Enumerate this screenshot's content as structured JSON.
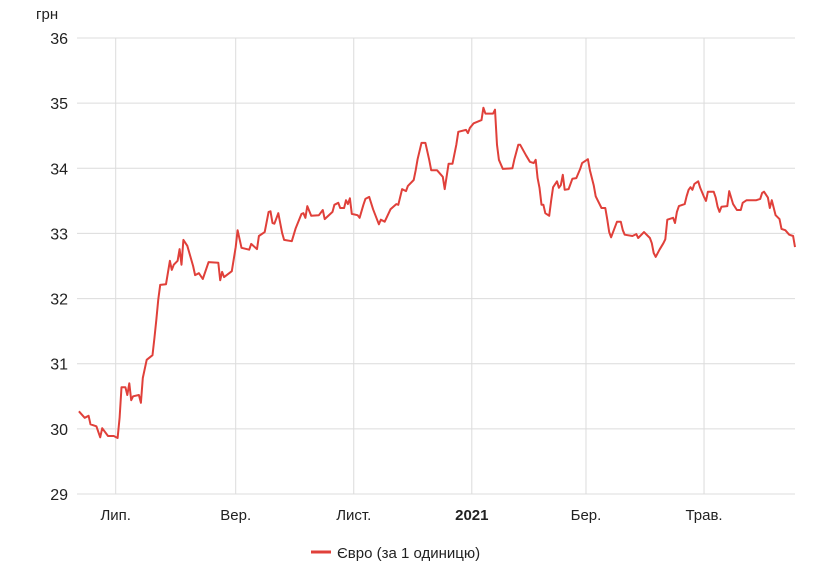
{
  "chart_data": {
    "type": "line",
    "title": "",
    "xlabel": "",
    "ylabel": "грн",
    "ylim": [
      29,
      36
    ],
    "yticks": [
      "29",
      "30",
      "31",
      "32",
      "33",
      "34",
      "35",
      "36"
    ],
    "x_unit": "days from start of range (mid-June 2020)",
    "xlim": [
      0,
      371
    ],
    "xticks": [
      {
        "day": 20,
        "label": "Лип.",
        "bold": false
      },
      {
        "day": 82,
        "label": "Вер.",
        "bold": false
      },
      {
        "day": 143,
        "label": "Лист.",
        "bold": false
      },
      {
        "day": 204,
        "label": "2021",
        "bold": true
      },
      {
        "day": 263,
        "label": "Бер.",
        "bold": false
      },
      {
        "day": 324,
        "label": "Трав.",
        "bold": false
      }
    ],
    "grid": true,
    "legend_position": "bottom",
    "series": [
      {
        "name": "Євро (за 1 одиницю)",
        "color": "#e0403a",
        "points": [
          [
            1,
            30.27
          ],
          [
            4,
            30.17
          ],
          [
            6,
            30.2
          ],
          [
            7,
            30.07
          ],
          [
            10,
            30.04
          ],
          [
            12,
            29.87
          ],
          [
            13,
            30.01
          ],
          [
            16,
            29.89
          ],
          [
            19,
            29.89
          ],
          [
            21,
            29.86
          ],
          [
            22,
            30.17
          ],
          [
            23,
            30.64
          ],
          [
            25,
            30.64
          ],
          [
            26,
            30.52
          ],
          [
            27,
            30.7
          ],
          [
            28,
            30.44
          ],
          [
            29,
            30.5
          ],
          [
            32,
            30.52
          ],
          [
            33,
            30.4
          ],
          [
            34,
            30.78
          ],
          [
            36,
            31.06
          ],
          [
            39,
            31.13
          ],
          [
            40,
            31.39
          ],
          [
            41,
            31.67
          ],
          [
            42,
            31.99
          ],
          [
            43,
            32.21
          ],
          [
            46,
            32.22
          ],
          [
            48,
            32.58
          ],
          [
            49,
            32.44
          ],
          [
            50,
            32.52
          ],
          [
            52,
            32.58
          ],
          [
            53,
            32.76
          ],
          [
            54,
            32.52
          ],
          [
            55,
            32.9
          ],
          [
            57,
            32.81
          ],
          [
            60,
            32.5
          ],
          [
            61,
            32.36
          ],
          [
            63,
            32.39
          ],
          [
            65,
            32.3
          ],
          [
            68,
            32.56
          ],
          [
            73,
            32.55
          ],
          [
            74,
            32.28
          ],
          [
            75,
            32.41
          ],
          [
            76,
            32.33
          ],
          [
            80,
            32.42
          ],
          [
            82,
            32.79
          ],
          [
            83,
            33.05
          ],
          [
            85,
            32.78
          ],
          [
            89,
            32.75
          ],
          [
            90,
            32.84
          ],
          [
            93,
            32.76
          ],
          [
            94,
            32.96
          ],
          [
            97,
            33.02
          ],
          [
            99,
            33.33
          ],
          [
            100,
            33.34
          ],
          [
            101,
            33.16
          ],
          [
            102,
            33.15
          ],
          [
            104,
            33.31
          ],
          [
            106,
            33.01
          ],
          [
            107,
            32.9
          ],
          [
            111,
            32.88
          ],
          [
            113,
            33.08
          ],
          [
            116,
            33.3
          ],
          [
            117,
            33.31
          ],
          [
            118,
            33.24
          ],
          [
            119,
            33.42
          ],
          [
            121,
            33.27
          ],
          [
            125,
            33.28
          ],
          [
            127,
            33.36
          ],
          [
            128,
            33.22
          ],
          [
            132,
            33.33
          ],
          [
            133,
            33.44
          ],
          [
            135,
            33.47
          ],
          [
            136,
            33.39
          ],
          [
            138,
            33.39
          ],
          [
            139,
            33.51
          ],
          [
            140,
            33.45
          ],
          [
            141,
            33.54
          ],
          [
            142,
            33.3
          ],
          [
            145,
            33.28
          ],
          [
            146,
            33.24
          ],
          [
            148,
            33.44
          ],
          [
            149,
            33.53
          ],
          [
            151,
            33.56
          ],
          [
            153,
            33.37
          ],
          [
            156,
            33.14
          ],
          [
            157,
            33.21
          ],
          [
            159,
            33.18
          ],
          [
            162,
            33.37
          ],
          [
            165,
            33.45
          ],
          [
            166,
            33.44
          ],
          [
            168,
            33.68
          ],
          [
            170,
            33.65
          ],
          [
            171,
            33.73
          ],
          [
            174,
            33.82
          ],
          [
            175,
            33.97
          ],
          [
            176,
            34.14
          ],
          [
            178,
            34.39
          ],
          [
            180,
            34.39
          ],
          [
            182,
            34.13
          ],
          [
            183,
            33.97
          ],
          [
            186,
            33.97
          ],
          [
            189,
            33.87
          ],
          [
            190,
            33.68
          ],
          [
            192,
            34.07
          ],
          [
            194,
            34.07
          ],
          [
            196,
            34.36
          ],
          [
            197,
            34.56
          ],
          [
            201,
            34.59
          ],
          [
            202,
            34.54
          ],
          [
            203,
            34.62
          ],
          [
            205,
            34.69
          ],
          [
            209,
            34.74
          ],
          [
            210,
            34.93
          ],
          [
            211,
            34.84
          ],
          [
            215,
            34.84
          ],
          [
            216,
            34.9
          ],
          [
            217,
            34.36
          ],
          [
            218,
            34.13
          ],
          [
            220,
            33.99
          ],
          [
            225,
            34.0
          ],
          [
            226,
            34.14
          ],
          [
            228,
            34.36
          ],
          [
            229,
            34.36
          ],
          [
            232,
            34.2
          ],
          [
            234,
            34.1
          ],
          [
            236,
            34.08
          ],
          [
            237,
            34.13
          ],
          [
            238,
            33.85
          ],
          [
            239,
            33.7
          ],
          [
            240,
            33.44
          ],
          [
            241,
            33.44
          ],
          [
            242,
            33.31
          ],
          [
            244,
            33.27
          ],
          [
            245,
            33.51
          ],
          [
            246,
            33.71
          ],
          [
            248,
            33.8
          ],
          [
            249,
            33.7
          ],
          [
            250,
            33.74
          ],
          [
            251,
            33.9
          ],
          [
            252,
            33.67
          ],
          [
            254,
            33.68
          ],
          [
            256,
            33.84
          ],
          [
            258,
            33.85
          ],
          [
            260,
            33.99
          ],
          [
            261,
            34.08
          ],
          [
            264,
            34.14
          ],
          [
            265,
            33.97
          ],
          [
            267,
            33.74
          ],
          [
            268,
            33.57
          ],
          [
            271,
            33.39
          ],
          [
            273,
            33.39
          ],
          [
            274,
            33.21
          ],
          [
            275,
            33.02
          ],
          [
            276,
            32.94
          ],
          [
            279,
            33.18
          ],
          [
            281,
            33.18
          ],
          [
            282,
            33.05
          ],
          [
            283,
            32.98
          ],
          [
            287,
            32.96
          ],
          [
            289,
            32.99
          ],
          [
            290,
            32.93
          ],
          [
            293,
            33.02
          ],
          [
            295,
            32.96
          ],
          [
            296,
            32.93
          ],
          [
            297,
            32.85
          ],
          [
            298,
            32.7
          ],
          [
            299,
            32.64
          ],
          [
            301,
            32.75
          ],
          [
            303,
            32.85
          ],
          [
            304,
            32.91
          ],
          [
            305,
            33.21
          ],
          [
            308,
            33.24
          ],
          [
            309,
            33.16
          ],
          [
            310,
            33.33
          ],
          [
            311,
            33.42
          ],
          [
            314,
            33.45
          ],
          [
            315,
            33.57
          ],
          [
            316,
            33.67
          ],
          [
            317,
            33.71
          ],
          [
            318,
            33.67
          ],
          [
            319,
            33.76
          ],
          [
            321,
            33.8
          ],
          [
            322,
            33.7
          ],
          [
            324,
            33.56
          ],
          [
            325,
            33.5
          ],
          [
            326,
            33.64
          ],
          [
            329,
            33.64
          ],
          [
            330,
            33.55
          ],
          [
            331,
            33.41
          ],
          [
            332,
            33.33
          ],
          [
            333,
            33.41
          ],
          [
            336,
            33.42
          ],
          [
            337,
            33.65
          ],
          [
            339,
            33.45
          ],
          [
            341,
            33.36
          ],
          [
            343,
            33.36
          ],
          [
            344,
            33.47
          ],
          [
            346,
            33.51
          ],
          [
            348,
            33.51
          ],
          [
            351,
            33.51
          ],
          [
            353,
            33.53
          ],
          [
            354,
            33.62
          ],
          [
            355,
            33.64
          ],
          [
            357,
            33.55
          ],
          [
            358,
            33.39
          ],
          [
            359,
            33.51
          ],
          [
            361,
            33.28
          ],
          [
            363,
            33.22
          ],
          [
            364,
            33.07
          ],
          [
            366,
            33.05
          ],
          [
            368,
            32.98
          ],
          [
            370,
            32.96
          ],
          [
            371,
            32.79
          ]
        ]
      }
    ]
  }
}
